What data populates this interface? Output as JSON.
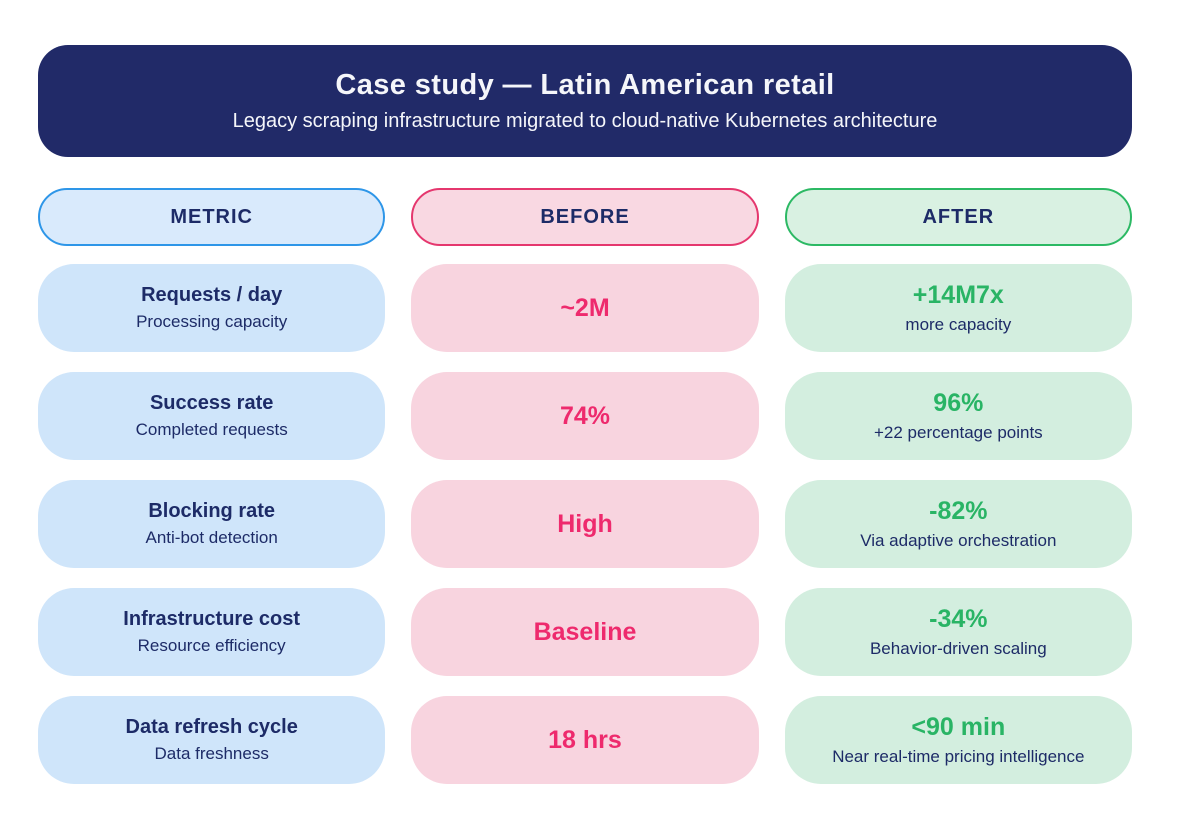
{
  "banner": {
    "title": "Case study — Latin American retail",
    "subtitle": "Legacy scraping infrastructure migrated to cloud-native Kubernetes architecture"
  },
  "chart_data": {
    "type": "table",
    "title": "Case study — Latin American retail",
    "subtitle": "Legacy scraping infrastructure migrated to cloud-native Kubernetes architecture",
    "columns": [
      "METRIC",
      "BEFORE",
      "AFTER"
    ],
    "rows": [
      {
        "metric": "Requests / day",
        "metric_sub": "Processing capacity",
        "before": "~2M",
        "after": "+14M7x",
        "after_sub": "more capacity"
      },
      {
        "metric": "Success rate",
        "metric_sub": "Completed requests",
        "before": "74%",
        "after": "96%",
        "after_sub": "+22 percentage points"
      },
      {
        "metric": "Blocking rate",
        "metric_sub": "Anti-bot detection",
        "before": "High",
        "after": "-82%",
        "after_sub": "Via adaptive orchestration"
      },
      {
        "metric": "Infrastructure cost",
        "metric_sub": "Resource efficiency",
        "before": "Baseline",
        "after": "-34%",
        "after_sub": "Behavior-driven scaling"
      },
      {
        "metric": "Data refresh cycle",
        "metric_sub": "Data freshness",
        "before": "18 hrs",
        "after": "<90 min",
        "after_sub": "Near real-time pricing intelligence"
      }
    ]
  },
  "colors": {
    "banner-bg": "#212a68",
    "banner-text": "#f5f6fa",
    "navy-text": "#1d2b67",
    "metric-header-bg": "#d9eafc",
    "metric-header-border": "#2e96e8",
    "before-header-bg": "#f9d8e2",
    "before-header-border": "#e5376e",
    "after-header-bg": "#d9f1e2",
    "after-header-border": "#2cb964",
    "metric-cell-bg": "#cfe5fa",
    "before-cell-bg": "#f8d4df",
    "after-cell-bg": "#d3eedf",
    "before-value": "#ee2a6d",
    "after-value": "#29b465"
  }
}
